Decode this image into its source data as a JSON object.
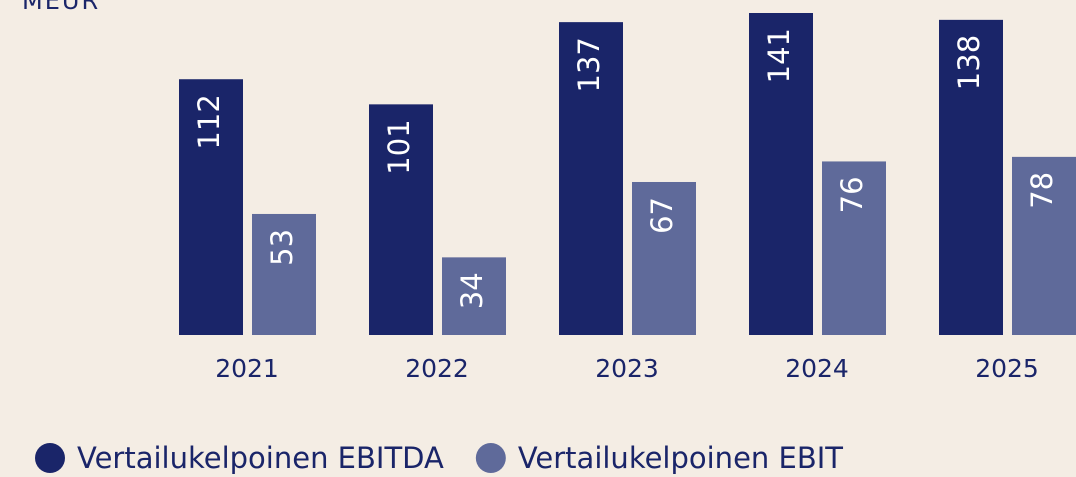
{
  "chart_data": {
    "type": "bar",
    "title": "MEUR",
    "categories": [
      "2021",
      "2022",
      "2023",
      "2024",
      "2025"
    ],
    "series": [
      {
        "name": "Vertailukelpoinen EBITDA",
        "color": "#1a2569",
        "values": [
          112,
          101,
          137,
          141,
          138
        ]
      },
      {
        "name": "Vertailukelpoinen EBIT",
        "color": "#5f6a9a",
        "values": [
          53,
          34,
          67,
          76,
          78
        ]
      }
    ]
  }
}
